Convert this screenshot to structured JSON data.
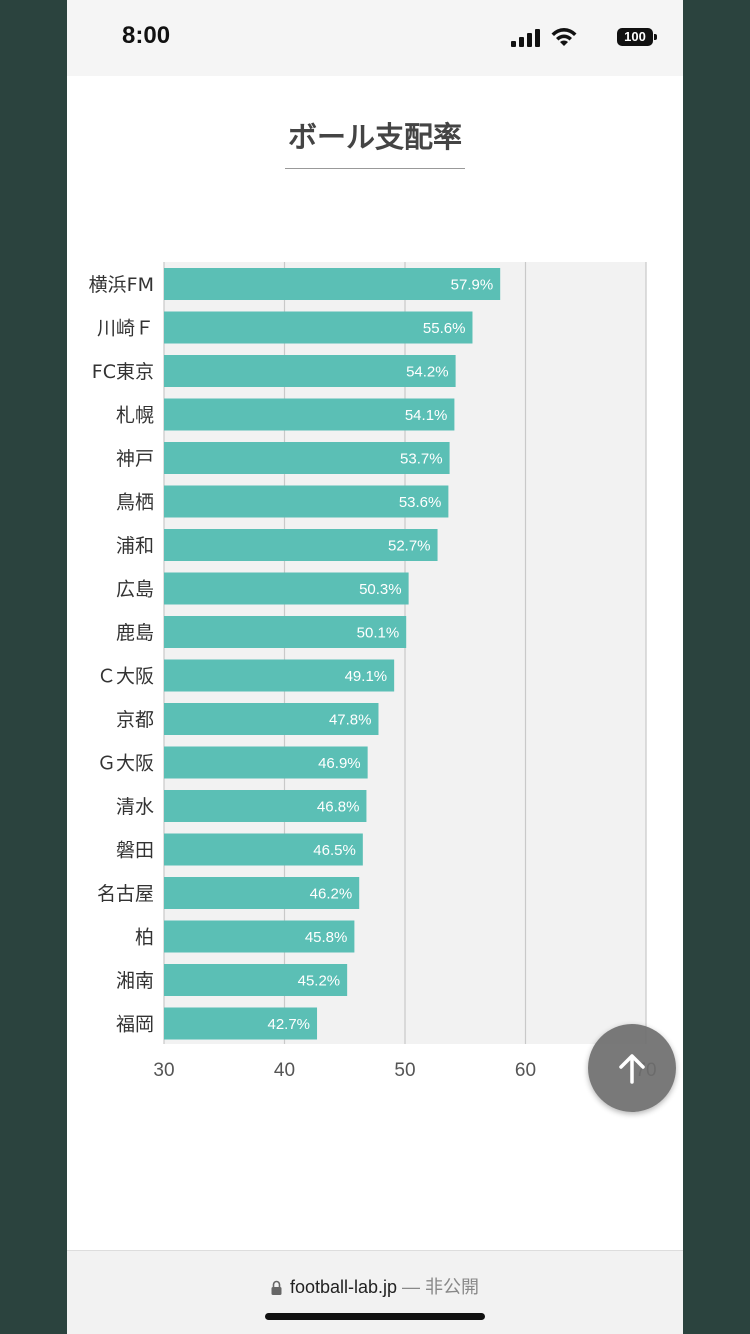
{
  "status_bar": {
    "time": "8:00",
    "battery": "100"
  },
  "url_bar": {
    "domain": "football-lab.jp",
    "suffix": "— 非公開"
  },
  "chart_data": {
    "type": "bar",
    "orientation": "horizontal",
    "title": "ボール支配率",
    "categories": [
      "横浜FM",
      "川崎Ｆ",
      "FC東京",
      "札幌",
      "神戸",
      "鳥栖",
      "浦和",
      "広島",
      "鹿島",
      "Ｃ大阪",
      "京都",
      "Ｇ大阪",
      "清水",
      "磐田",
      "名古屋",
      "柏",
      "湘南",
      "福岡"
    ],
    "values": [
      57.9,
      55.6,
      54.2,
      54.1,
      53.7,
      53.6,
      52.7,
      50.3,
      50.1,
      49.1,
      47.8,
      46.9,
      46.8,
      46.5,
      46.2,
      45.8,
      45.2,
      42.7
    ],
    "value_labels": [
      "57.9%",
      "55.6%",
      "54.2%",
      "54.1%",
      "53.7%",
      "53.6%",
      "52.7%",
      "50.3%",
      "50.1%",
      "49.1%",
      "47.8%",
      "46.9%",
      "46.8%",
      "46.5%",
      "46.2%",
      "45.8%",
      "45.2%",
      "42.7%"
    ],
    "xlim": [
      30,
      70
    ],
    "xticks": [
      "30",
      "40",
      "50",
      "60",
      "70"
    ],
    "grid": true,
    "bar_color": "#5bbfb5",
    "label_color": "#ffffff"
  }
}
